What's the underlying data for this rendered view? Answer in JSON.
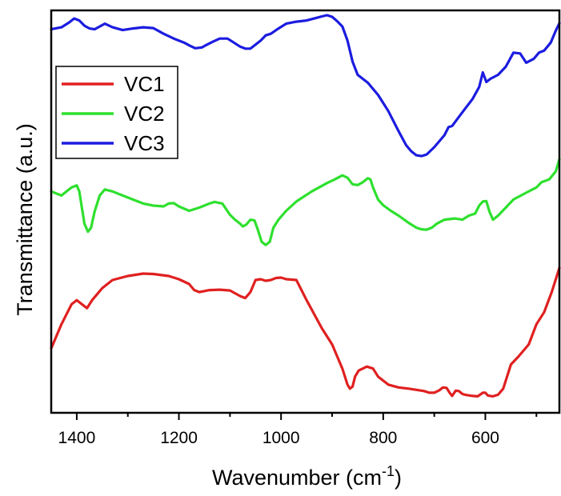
{
  "chart_data": {
    "type": "line",
    "xlabel": "Wavenumber (cm",
    "xlabel_sup": "-1",
    "xlabel_end": ")",
    "ylabel": "Transmittance (a.u.)",
    "xlim": [
      1450,
      455
    ],
    "ylim": [
      0,
      100
    ],
    "x_reversed": true,
    "y_ticks_shown": false,
    "x_ticks": [
      1400,
      1200,
      1000,
      800,
      600
    ],
    "x_tick_labels": [
      "1400",
      "1200",
      "1000",
      "800",
      "600"
    ],
    "legend_position": "top-left",
    "grid": false,
    "series": [
      {
        "name": "VC1",
        "color": "#e02020",
        "points": [
          [
            1450,
            16
          ],
          [
            1430,
            22
          ],
          [
            1410,
            27
          ],
          [
            1400,
            28
          ],
          [
            1390,
            27
          ],
          [
            1380,
            26
          ],
          [
            1370,
            28
          ],
          [
            1350,
            31
          ],
          [
            1330,
            33
          ],
          [
            1300,
            34
          ],
          [
            1270,
            34.6
          ],
          [
            1250,
            34.5
          ],
          [
            1220,
            34
          ],
          [
            1200,
            33.2
          ],
          [
            1180,
            32
          ],
          [
            1170,
            30.5
          ],
          [
            1160,
            30
          ],
          [
            1140,
            30.5
          ],
          [
            1120,
            30.6
          ],
          [
            1100,
            30.4
          ],
          [
            1080,
            29
          ],
          [
            1070,
            28.5
          ],
          [
            1060,
            30
          ],
          [
            1050,
            33
          ],
          [
            1040,
            33.2
          ],
          [
            1030,
            32.8
          ],
          [
            1020,
            33
          ],
          [
            1010,
            33.5
          ],
          [
            1000,
            33.6
          ],
          [
            990,
            33.2
          ],
          [
            970,
            33
          ],
          [
            950,
            28
          ],
          [
            920,
            21
          ],
          [
            900,
            17
          ],
          [
            880,
            11
          ],
          [
            870,
            7
          ],
          [
            865,
            6
          ],
          [
            860,
            6.5
          ],
          [
            855,
            9
          ],
          [
            848,
            10.5
          ],
          [
            840,
            11
          ],
          [
            832,
            11.5
          ],
          [
            820,
            11
          ],
          [
            810,
            9
          ],
          [
            790,
            7
          ],
          [
            770,
            6.3
          ],
          [
            750,
            6
          ],
          [
            730,
            5.6
          ],
          [
            720,
            5.4
          ],
          [
            710,
            5
          ],
          [
            700,
            5
          ],
          [
            690,
            5.6
          ],
          [
            683,
            6.3
          ],
          [
            676,
            6.2
          ],
          [
            670,
            5
          ],
          [
            665,
            4.2
          ],
          [
            658,
            5.5
          ],
          [
            652,
            5.4
          ],
          [
            645,
            4.7
          ],
          [
            640,
            4.5
          ],
          [
            625,
            4.2
          ],
          [
            615,
            4.1
          ],
          [
            605,
            5
          ],
          [
            600,
            5
          ],
          [
            595,
            4.3
          ],
          [
            585,
            4.1
          ],
          [
            575,
            4.5
          ],
          [
            565,
            6
          ],
          [
            550,
            12
          ],
          [
            535,
            14
          ],
          [
            515,
            17
          ],
          [
            500,
            22
          ],
          [
            485,
            25
          ],
          [
            470,
            30
          ],
          [
            455,
            36
          ]
        ]
      },
      {
        "name": "VC2",
        "color": "#2ee02e",
        "points": [
          [
            1450,
            55
          ],
          [
            1430,
            54
          ],
          [
            1420,
            55
          ],
          [
            1410,
            56
          ],
          [
            1400,
            56.5
          ],
          [
            1395,
            55
          ],
          [
            1390,
            51
          ],
          [
            1385,
            47
          ],
          [
            1378,
            45
          ],
          [
            1372,
            46
          ],
          [
            1365,
            50
          ],
          [
            1355,
            54
          ],
          [
            1345,
            55.5
          ],
          [
            1330,
            55
          ],
          [
            1310,
            54
          ],
          [
            1290,
            53
          ],
          [
            1270,
            52
          ],
          [
            1250,
            51.5
          ],
          [
            1230,
            51.3
          ],
          [
            1220,
            52
          ],
          [
            1210,
            52.1
          ],
          [
            1200,
            51.3
          ],
          [
            1180,
            50.2
          ],
          [
            1160,
            51
          ],
          [
            1140,
            52
          ],
          [
            1130,
            52.4
          ],
          [
            1115,
            52
          ],
          [
            1100,
            49.2
          ],
          [
            1090,
            48
          ],
          [
            1080,
            47
          ],
          [
            1075,
            46.3
          ],
          [
            1068,
            46.8
          ],
          [
            1060,
            48
          ],
          [
            1052,
            47.8
          ],
          [
            1045,
            45.3
          ],
          [
            1038,
            42.5
          ],
          [
            1030,
            41.7
          ],
          [
            1022,
            42.5
          ],
          [
            1015,
            46
          ],
          [
            1005,
            48
          ],
          [
            990,
            50.2
          ],
          [
            970,
            52.5
          ],
          [
            940,
            55
          ],
          [
            910,
            57.1
          ],
          [
            895,
            58
          ],
          [
            880,
            59
          ],
          [
            870,
            58.4
          ],
          [
            860,
            56.8
          ],
          [
            850,
            56.6
          ],
          [
            840,
            57.3
          ],
          [
            830,
            58.3
          ],
          [
            825,
            58
          ],
          [
            820,
            56
          ],
          [
            810,
            53
          ],
          [
            800,
            51.6
          ],
          [
            785,
            50.2
          ],
          [
            770,
            49
          ],
          [
            750,
            47.2
          ],
          [
            735,
            46
          ],
          [
            725,
            45.6
          ],
          [
            715,
            45.5
          ],
          [
            705,
            46
          ],
          [
            695,
            47
          ],
          [
            680,
            48
          ],
          [
            660,
            48.3
          ],
          [
            645,
            48
          ],
          [
            632,
            49
          ],
          [
            620,
            49.5
          ],
          [
            612,
            51.5
          ],
          [
            605,
            52.5
          ],
          [
            598,
            52.6
          ],
          [
            592,
            50
          ],
          [
            585,
            48
          ],
          [
            575,
            49
          ],
          [
            560,
            51
          ],
          [
            545,
            53
          ],
          [
            520,
            54.7
          ],
          [
            500,
            56
          ],
          [
            490,
            57.3
          ],
          [
            475,
            58
          ],
          [
            462,
            60
          ],
          [
            455,
            63
          ]
        ]
      },
      {
        "name": "VC3",
        "color": "#1c1ce0",
        "points": [
          [
            1450,
            95.3
          ],
          [
            1430,
            95.8
          ],
          [
            1415,
            97
          ],
          [
            1405,
            98
          ],
          [
            1395,
            97.5
          ],
          [
            1385,
            96.2
          ],
          [
            1375,
            95.5
          ],
          [
            1365,
            95.3
          ],
          [
            1355,
            96
          ],
          [
            1345,
            96.7
          ],
          [
            1330,
            95.8
          ],
          [
            1310,
            95.1
          ],
          [
            1290,
            95.5
          ],
          [
            1270,
            95.8
          ],
          [
            1250,
            95.6
          ],
          [
            1230,
            94.2
          ],
          [
            1210,
            93
          ],
          [
            1190,
            92
          ],
          [
            1178,
            91.2
          ],
          [
            1168,
            90.6
          ],
          [
            1155,
            90.8
          ],
          [
            1145,
            91.5
          ],
          [
            1132,
            92.3
          ],
          [
            1120,
            93
          ],
          [
            1105,
            93
          ],
          [
            1095,
            92.2
          ],
          [
            1080,
            91
          ],
          [
            1070,
            90.5
          ],
          [
            1060,
            90.5
          ],
          [
            1050,
            91.5
          ],
          [
            1040,
            92.5
          ],
          [
            1030,
            93.8
          ],
          [
            1020,
            94.2
          ],
          [
            1005,
            95.5
          ],
          [
            990,
            96.7
          ],
          [
            970,
            97.2
          ],
          [
            950,
            97.5
          ],
          [
            935,
            98
          ],
          [
            920,
            98.5
          ],
          [
            910,
            98.8
          ],
          [
            900,
            98.4
          ],
          [
            890,
            97.3
          ],
          [
            880,
            96
          ],
          [
            870,
            92.5
          ],
          [
            860,
            87.3
          ],
          [
            850,
            84
          ],
          [
            830,
            82
          ],
          [
            810,
            79
          ],
          [
            790,
            75
          ],
          [
            770,
            70
          ],
          [
            755,
            66.5
          ],
          [
            745,
            65
          ],
          [
            735,
            64
          ],
          [
            725,
            63.8
          ],
          [
            715,
            64.2
          ],
          [
            700,
            66
          ],
          [
            690,
            67.5
          ],
          [
            680,
            69
          ],
          [
            672,
            71
          ],
          [
            665,
            71.3
          ],
          [
            655,
            73
          ],
          [
            640,
            75.5
          ],
          [
            625,
            78
          ],
          [
            612,
            81
          ],
          [
            605,
            84.6
          ],
          [
            598,
            82.2
          ],
          [
            590,
            83
          ],
          [
            575,
            84
          ],
          [
            560,
            86
          ],
          [
            545,
            89.5
          ],
          [
            532,
            89.3
          ],
          [
            520,
            87
          ],
          [
            505,
            88
          ],
          [
            495,
            89.5
          ],
          [
            485,
            90
          ],
          [
            472,
            92
          ],
          [
            462,
            95
          ],
          [
            455,
            96.8
          ]
        ]
      }
    ]
  }
}
